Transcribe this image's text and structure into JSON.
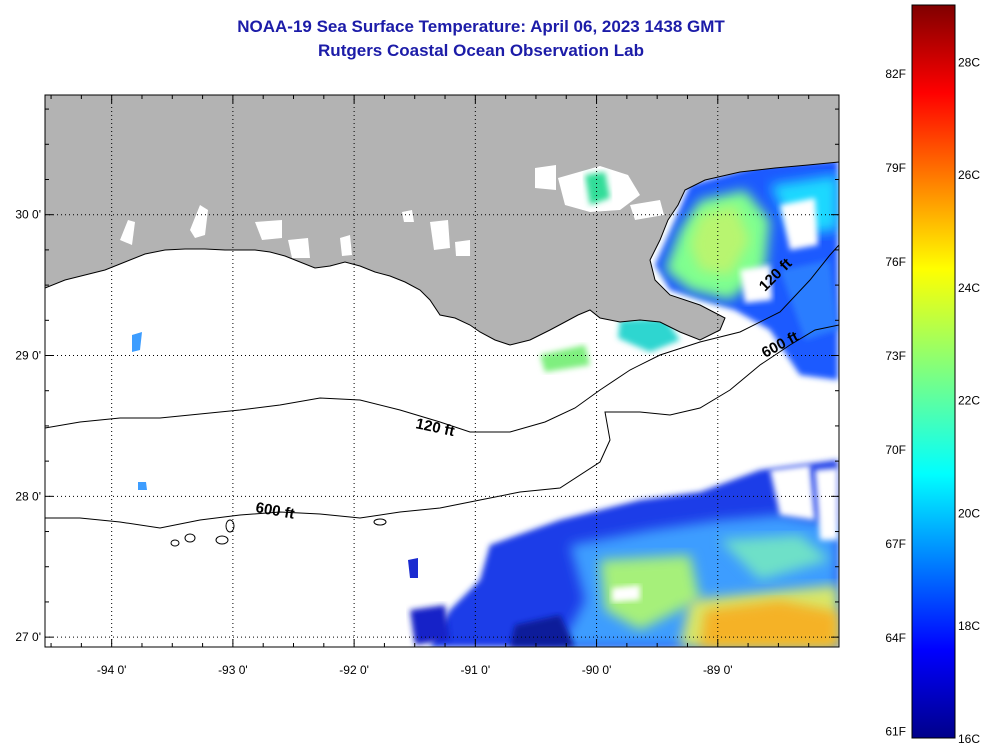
{
  "title": {
    "line1": "NOAA-19 Sea Surface Temperature:  April 06, 2023 1438 GMT",
    "line2": "Rutgers Coastal Ocean Observation Lab"
  },
  "map": {
    "lon_range": [
      -94.55,
      -88.0
    ],
    "lat_range": [
      26.93,
      30.85
    ],
    "lon_ticks": [
      -94,
      -93,
      -92,
      -91,
      -90,
      -89
    ],
    "lon_tick_labels": [
      "-94 0'",
      "-93 0'",
      "-92 0'",
      "-91 0'",
      "-90 0'",
      "-89 0'"
    ],
    "lat_ticks": [
      27,
      28,
      29,
      30
    ],
    "lat_tick_labels": [
      "27 0'",
      "28 0'",
      "29 0'",
      "30 0'"
    ],
    "grid": "dotted",
    "land_color": "#b3b3b3",
    "cloud_color": "#ffffff"
  },
  "contours": [
    {
      "label": "120 ft"
    },
    {
      "label": "600 ft"
    }
  ],
  "colorbar": {
    "range_c": [
      16,
      29
    ],
    "celsius_labels": [
      "28C",
      "26C",
      "24C",
      "22C",
      "20C",
      "18C",
      "16C"
    ],
    "fahrenheit_labels": [
      "82F",
      "79F",
      "76F",
      "73F",
      "70F",
      "67F",
      "64F",
      "61F"
    ]
  }
}
